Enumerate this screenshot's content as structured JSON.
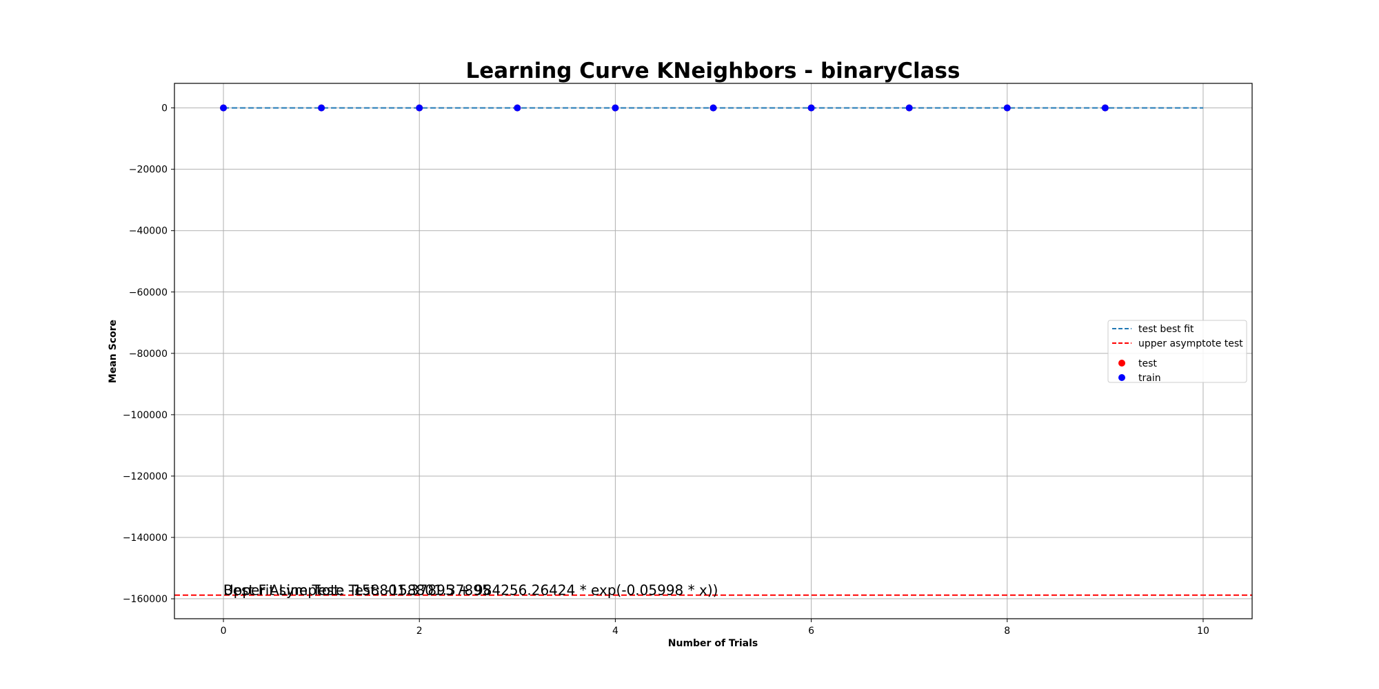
{
  "chart_data": {
    "type": "scatter",
    "title": "Learning Curve KNeighbors - binaryClass",
    "xlabel": "Number of Trials",
    "ylabel": "Mean Score",
    "xlim": [
      -0.5,
      10.5
    ],
    "ylim": [
      -166500,
      8000
    ],
    "x_ticks": [
      0,
      2,
      4,
      6,
      8,
      10
    ],
    "y_ticks": [
      0,
      -20000,
      -40000,
      -60000,
      -80000,
      -100000,
      -120000,
      -140000,
      -160000
    ],
    "x_tick_labels": [
      "0",
      "2",
      "4",
      "6",
      "8",
      "10"
    ],
    "y_tick_labels": [
      "0",
      "−20000",
      "−40000",
      "−60000",
      "−80000",
      "−100000",
      "−120000",
      "−140000",
      "−160000"
    ],
    "grid": true,
    "legend_position": "center-right",
    "series": [
      {
        "name": "test best fit",
        "kind": "line",
        "style": "dashed",
        "color": "#1f77b4",
        "x": [
          0,
          1,
          2,
          3,
          4,
          5,
          6,
          7,
          8,
          9,
          10
        ],
        "y": [
          0,
          0,
          0,
          0,
          0,
          0,
          0,
          0,
          0,
          0,
          0
        ]
      },
      {
        "name": "upper asymptote test",
        "kind": "hline",
        "style": "dashed",
        "color": "#ff0000",
        "y": -158800
      },
      {
        "name": "test",
        "kind": "scatter",
        "color": "#ff0000",
        "x": [
          0,
          1,
          2,
          3,
          4,
          5,
          6,
          7,
          8,
          9
        ],
        "y": [
          0,
          0,
          0,
          0,
          0,
          0,
          0,
          0,
          0,
          0
        ]
      },
      {
        "name": "train",
        "kind": "scatter",
        "color": "#0000ff",
        "x": [
          0,
          1,
          2,
          3,
          4,
          5,
          6,
          7,
          8,
          9
        ],
        "y": [
          0,
          0,
          0,
          0,
          0,
          0,
          0,
          0,
          0,
          0
        ]
      }
    ],
    "annotations": [
      {
        "text": "Best Fit Line Test: -158801.37895 + 984256.26424 * exp(-0.05998 * x))",
        "x": 0,
        "y": -158800
      },
      {
        "text": "Upper Asymptote Test: -158801.37895",
        "x": 0,
        "y": -158800
      }
    ]
  }
}
